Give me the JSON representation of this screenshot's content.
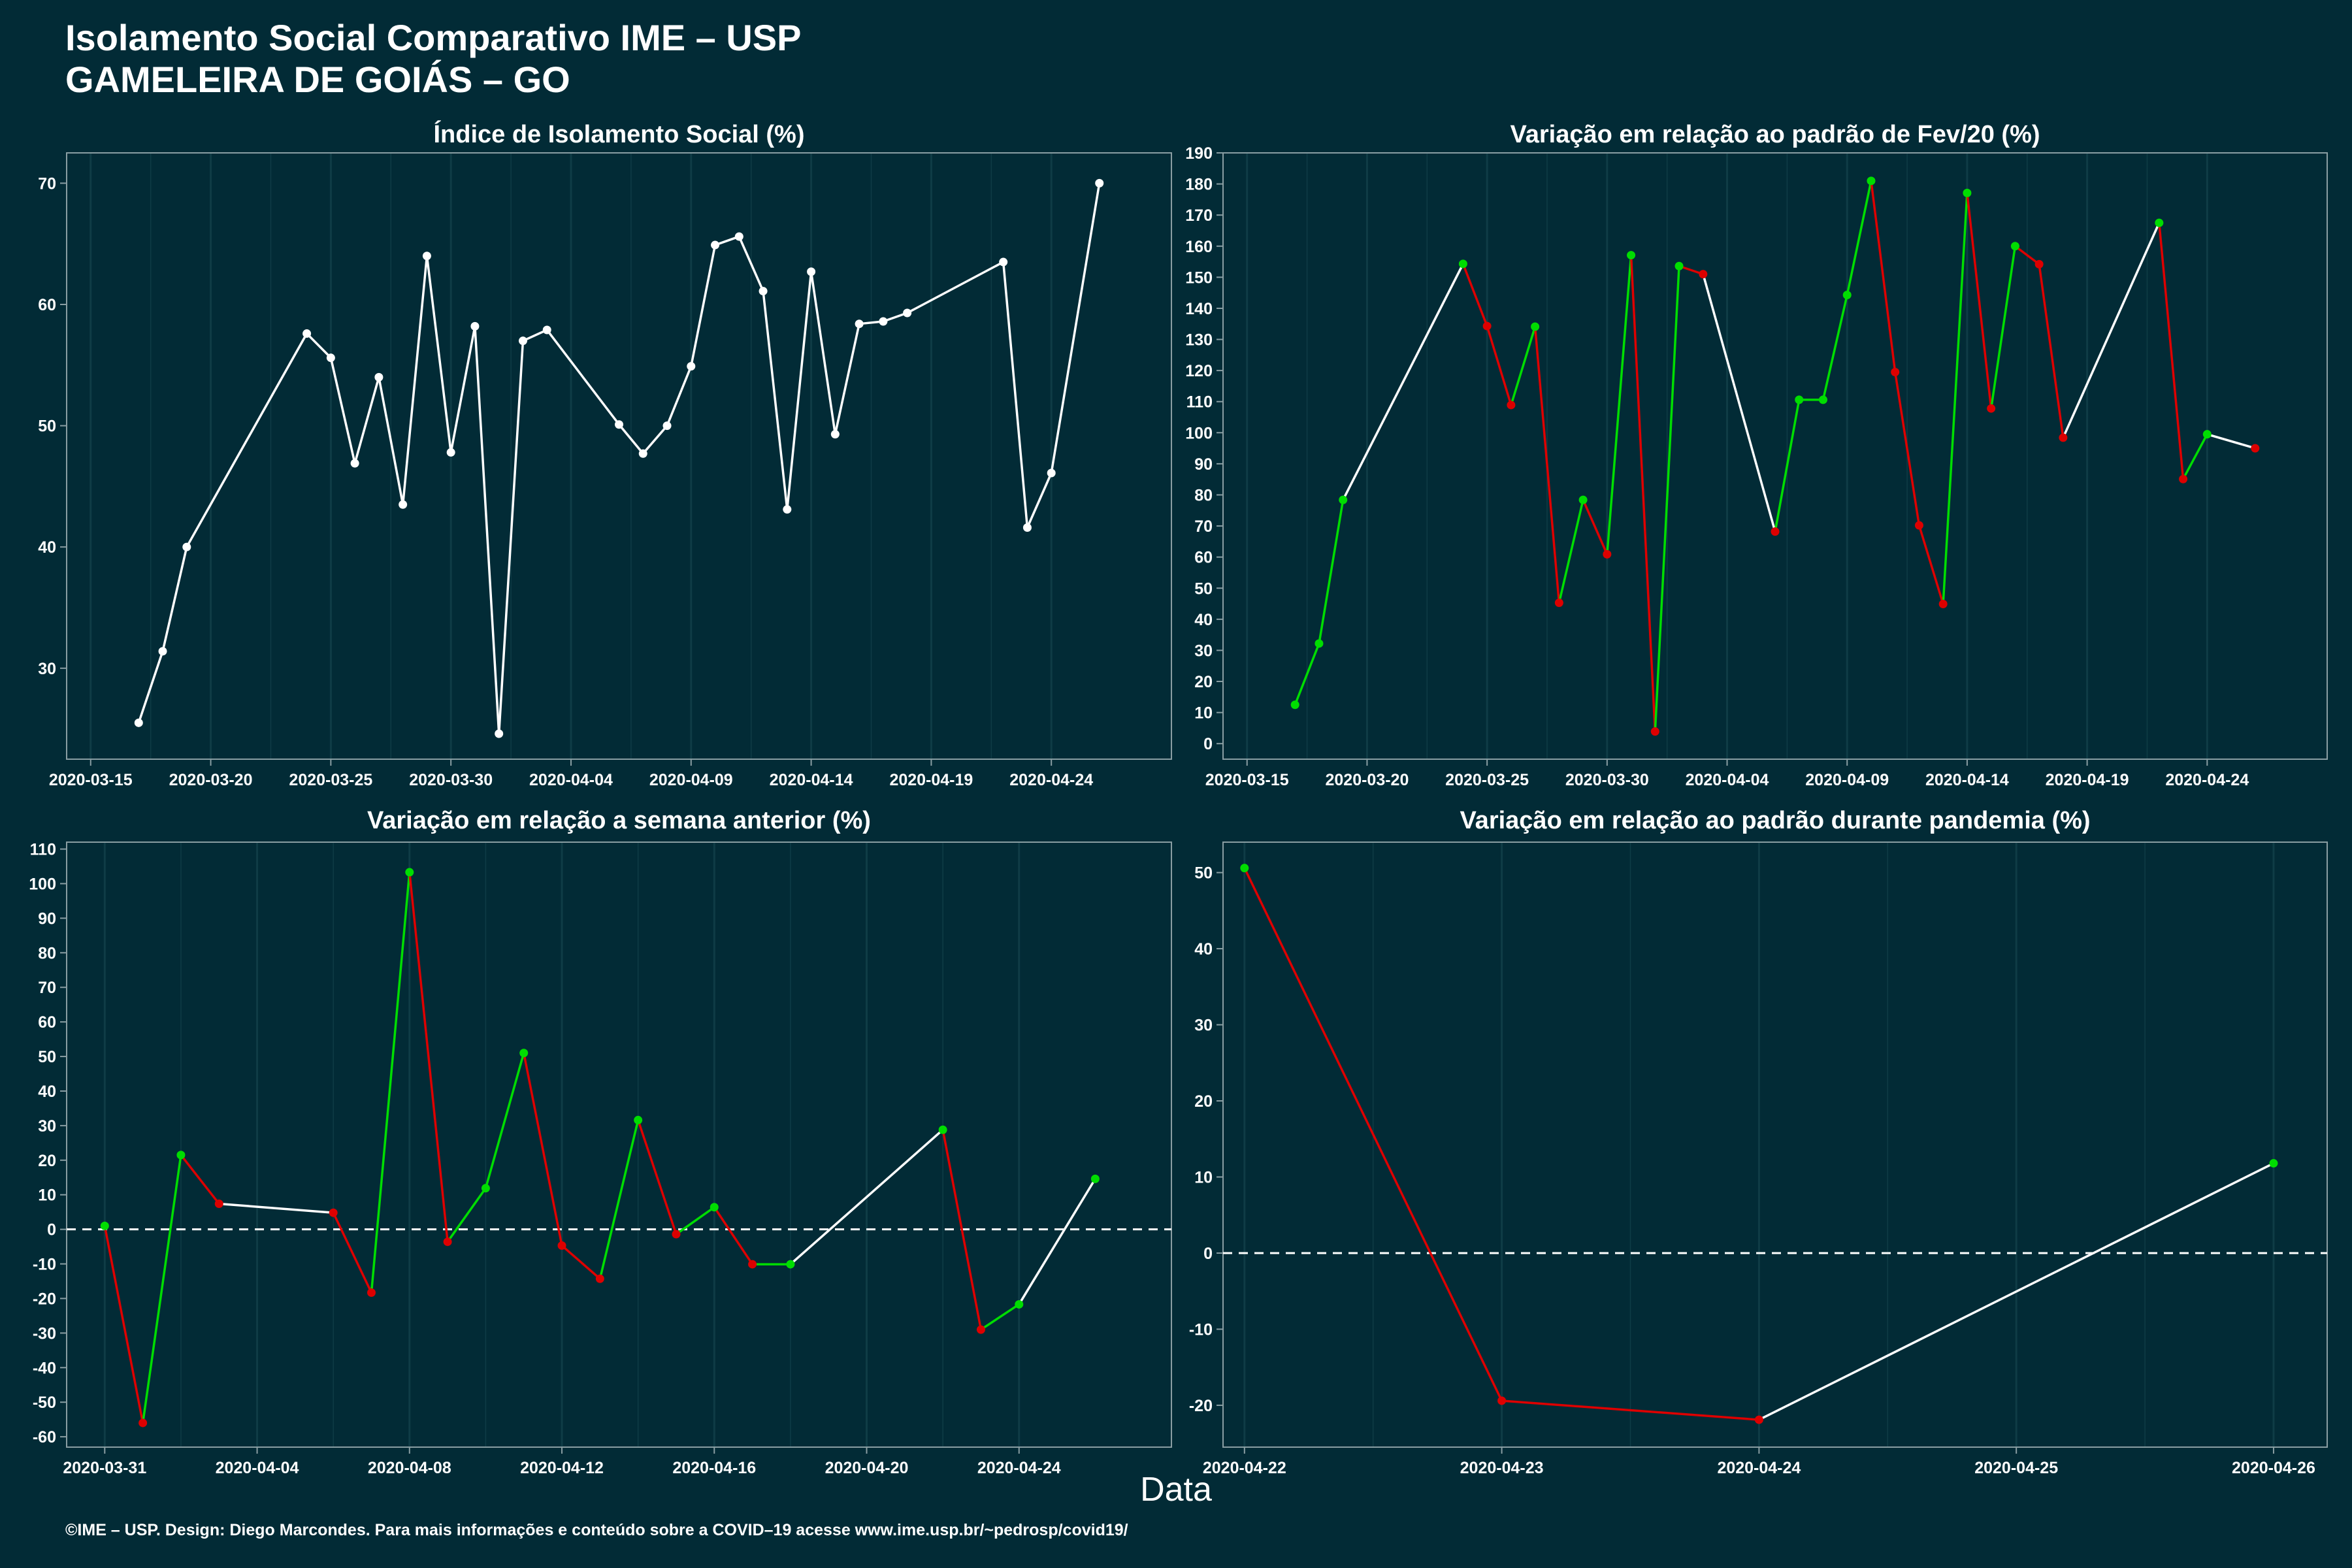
{
  "header": {
    "title": "Isolamento Social Comparativo IME – USP",
    "subtitle": "GAMELEIRA DE GOIÁS – GO"
  },
  "xlabel": "Data",
  "footer": "©IME – USP. Design: Diego Marcondes. Para mais informações e conteúdo sobre a COVID–19 acesse www.ime.usp.br/~pedrosp/covid19/",
  "colors": {
    "background": "#022b36",
    "panel": "#022b36",
    "grid": "#0f3c46",
    "axis": "#8a9ea3",
    "white_line": "#ffffff",
    "increase": "#00dd00",
    "decrease": "#dd0000"
  },
  "chart_data": [
    {
      "id": "isolation-index",
      "type": "line",
      "title": "Índice de Isolamento Social (%)",
      "color_mode": "white",
      "x_range": [
        "2020-03-14",
        "2020-04-29"
      ],
      "y_range": [
        22.5,
        72.5
      ],
      "y_ticks": [
        30,
        40,
        50,
        60,
        70
      ],
      "x_ticks": [
        "2020-03-15",
        "2020-03-20",
        "2020-03-25",
        "2020-03-30",
        "2020-04-04",
        "2020-04-09",
        "2020-04-14",
        "2020-04-19",
        "2020-04-24"
      ],
      "points": [
        [
          "2020-03-17",
          25.5
        ],
        [
          "2020-03-18",
          31.4
        ],
        [
          "2020-03-19",
          40.0
        ],
        [
          "2020-03-24",
          57.6
        ],
        [
          "2020-03-25",
          55.6
        ],
        [
          "2020-03-26",
          46.9
        ],
        [
          "2020-03-27",
          54.0
        ],
        [
          "2020-03-28",
          43.5
        ],
        [
          "2020-03-29",
          64.0
        ],
        [
          "2020-03-30",
          47.8
        ],
        [
          "2020-03-31",
          58.2
        ],
        [
          "2020-04-01",
          24.6
        ],
        [
          "2020-04-02",
          57.0
        ],
        [
          "2020-04-03",
          57.9
        ],
        [
          "2020-04-06",
          50.1
        ],
        [
          "2020-04-07",
          47.7
        ],
        [
          "2020-04-08",
          50.0
        ],
        [
          "2020-04-09",
          54.9
        ],
        [
          "2020-04-10",
          64.9
        ],
        [
          "2020-04-11",
          65.6
        ],
        [
          "2020-04-12",
          61.1
        ],
        [
          "2020-04-13",
          43.1
        ],
        [
          "2020-04-14",
          62.7
        ],
        [
          "2020-04-15",
          49.3
        ],
        [
          "2020-04-16",
          58.4
        ],
        [
          "2020-04-17",
          58.6
        ],
        [
          "2020-04-18",
          59.3
        ],
        [
          "2020-04-22",
          63.5
        ],
        [
          "2020-04-23",
          41.6
        ],
        [
          "2020-04-24",
          46.1
        ],
        [
          "2020-04-26",
          70.0
        ]
      ]
    },
    {
      "id": "variation-feb",
      "type": "line",
      "title": "Variação em relação ao padrão de Fev/20 (%)",
      "color_mode": "trend",
      "x_range": [
        "2020-03-14",
        "2020-04-29"
      ],
      "y_range": [
        -5,
        190
      ],
      "y_ticks": [
        0,
        10,
        20,
        30,
        40,
        50,
        60,
        70,
        80,
        90,
        100,
        110,
        120,
        130,
        140,
        150,
        160,
        170,
        180,
        190
      ],
      "x_ticks": [
        "2020-03-15",
        "2020-03-20",
        "2020-03-25",
        "2020-03-30",
        "2020-04-04",
        "2020-04-09",
        "2020-04-14",
        "2020-04-19",
        "2020-04-24"
      ],
      "points": [
        [
          "2020-03-17",
          12.5
        ],
        [
          "2020-03-18",
          32.2
        ],
        [
          "2020-03-19",
          78.4
        ],
        [
          "2020-03-24",
          154.3
        ],
        [
          "2020-03-25",
          134.3
        ],
        [
          "2020-03-26",
          108.9
        ],
        [
          "2020-03-27",
          134.1
        ],
        [
          "2020-03-28",
          45.3
        ],
        [
          "2020-03-29",
          78.4
        ],
        [
          "2020-03-30",
          60.9
        ],
        [
          "2020-03-31",
          157.1
        ],
        [
          "2020-04-01",
          3.9
        ],
        [
          "2020-04-02",
          153.6
        ],
        [
          "2020-04-03",
          151.0
        ],
        [
          "2020-04-06",
          68.2
        ],
        [
          "2020-04-07",
          110.6
        ],
        [
          "2020-04-08",
          110.6
        ],
        [
          "2020-04-09",
          144.3
        ],
        [
          "2020-04-10",
          181.0
        ],
        [
          "2020-04-11",
          119.5
        ],
        [
          "2020-04-12",
          70.2
        ],
        [
          "2020-04-13",
          44.9
        ],
        [
          "2020-04-14",
          177.1
        ],
        [
          "2020-04-15",
          107.8
        ],
        [
          "2020-04-16",
          160.0
        ],
        [
          "2020-04-17",
          154.2
        ],
        [
          "2020-04-18",
          98.4
        ],
        [
          "2020-04-22",
          167.5
        ],
        [
          "2020-04-23",
          85.1
        ],
        [
          "2020-04-24",
          99.5
        ],
        [
          "2020-04-26",
          95.0
        ]
      ]
    },
    {
      "id": "variation-week",
      "type": "line",
      "title": "Variação em relação a semana anterior (%)",
      "color_mode": "trend",
      "x_range": [
        "2020-03-30",
        "2020-04-28"
      ],
      "y_range": [
        -63,
        112
      ],
      "y_ticks": [
        -60,
        -50,
        -40,
        -30,
        -20,
        -10,
        0,
        10,
        20,
        30,
        40,
        50,
        60,
        70,
        80,
        90,
        100,
        110
      ],
      "x_ticks": [
        "2020-03-31",
        "2020-04-04",
        "2020-04-08",
        "2020-04-12",
        "2020-04-16",
        "2020-04-20",
        "2020-04-24"
      ],
      "zero_line": true,
      "points": [
        [
          "2020-03-31",
          1.0
        ],
        [
          "2020-04-01",
          -56.0
        ],
        [
          "2020-04-02",
          21.5
        ],
        [
          "2020-04-03",
          7.4
        ],
        [
          "2020-04-06",
          4.8
        ],
        [
          "2020-04-07",
          -18.3
        ],
        [
          "2020-04-08",
          103.3
        ],
        [
          "2020-04-09",
          -3.6
        ],
        [
          "2020-04-10",
          11.9
        ],
        [
          "2020-04-11",
          51.0
        ],
        [
          "2020-04-12",
          -4.7
        ],
        [
          "2020-04-13",
          -14.3
        ],
        [
          "2020-04-14",
          31.6
        ],
        [
          "2020-04-15",
          -1.4
        ],
        [
          "2020-04-16",
          6.4
        ],
        [
          "2020-04-17",
          -10.1
        ],
        [
          "2020-04-18",
          -10.1
        ],
        [
          "2020-04-22",
          28.8
        ],
        [
          "2020-04-23",
          -29.0
        ],
        [
          "2020-04-24",
          -21.7
        ],
        [
          "2020-04-26",
          14.6
        ]
      ]
    },
    {
      "id": "variation-pandemic",
      "type": "line",
      "title": "Variação em relação ao padrão durante pandemia (%)",
      "color_mode": "trend",
      "x_range": [
        "2020-04-21 22:00",
        "2020-04-26 05:00"
      ],
      "y_range": [
        -25.5,
        54
      ],
      "y_ticks": [
        -20,
        -10,
        0,
        10,
        20,
        30,
        40,
        50
      ],
      "x_ticks": [
        "2020-04-22",
        "2020-04-23",
        "2020-04-24",
        "2020-04-25",
        "2020-04-26"
      ],
      "zero_line": true,
      "points": [
        [
          "2020-04-22",
          50.6
        ],
        [
          "2020-04-23",
          -19.4
        ],
        [
          "2020-04-24",
          -21.9
        ],
        [
          "2020-04-26",
          11.8
        ]
      ]
    }
  ]
}
